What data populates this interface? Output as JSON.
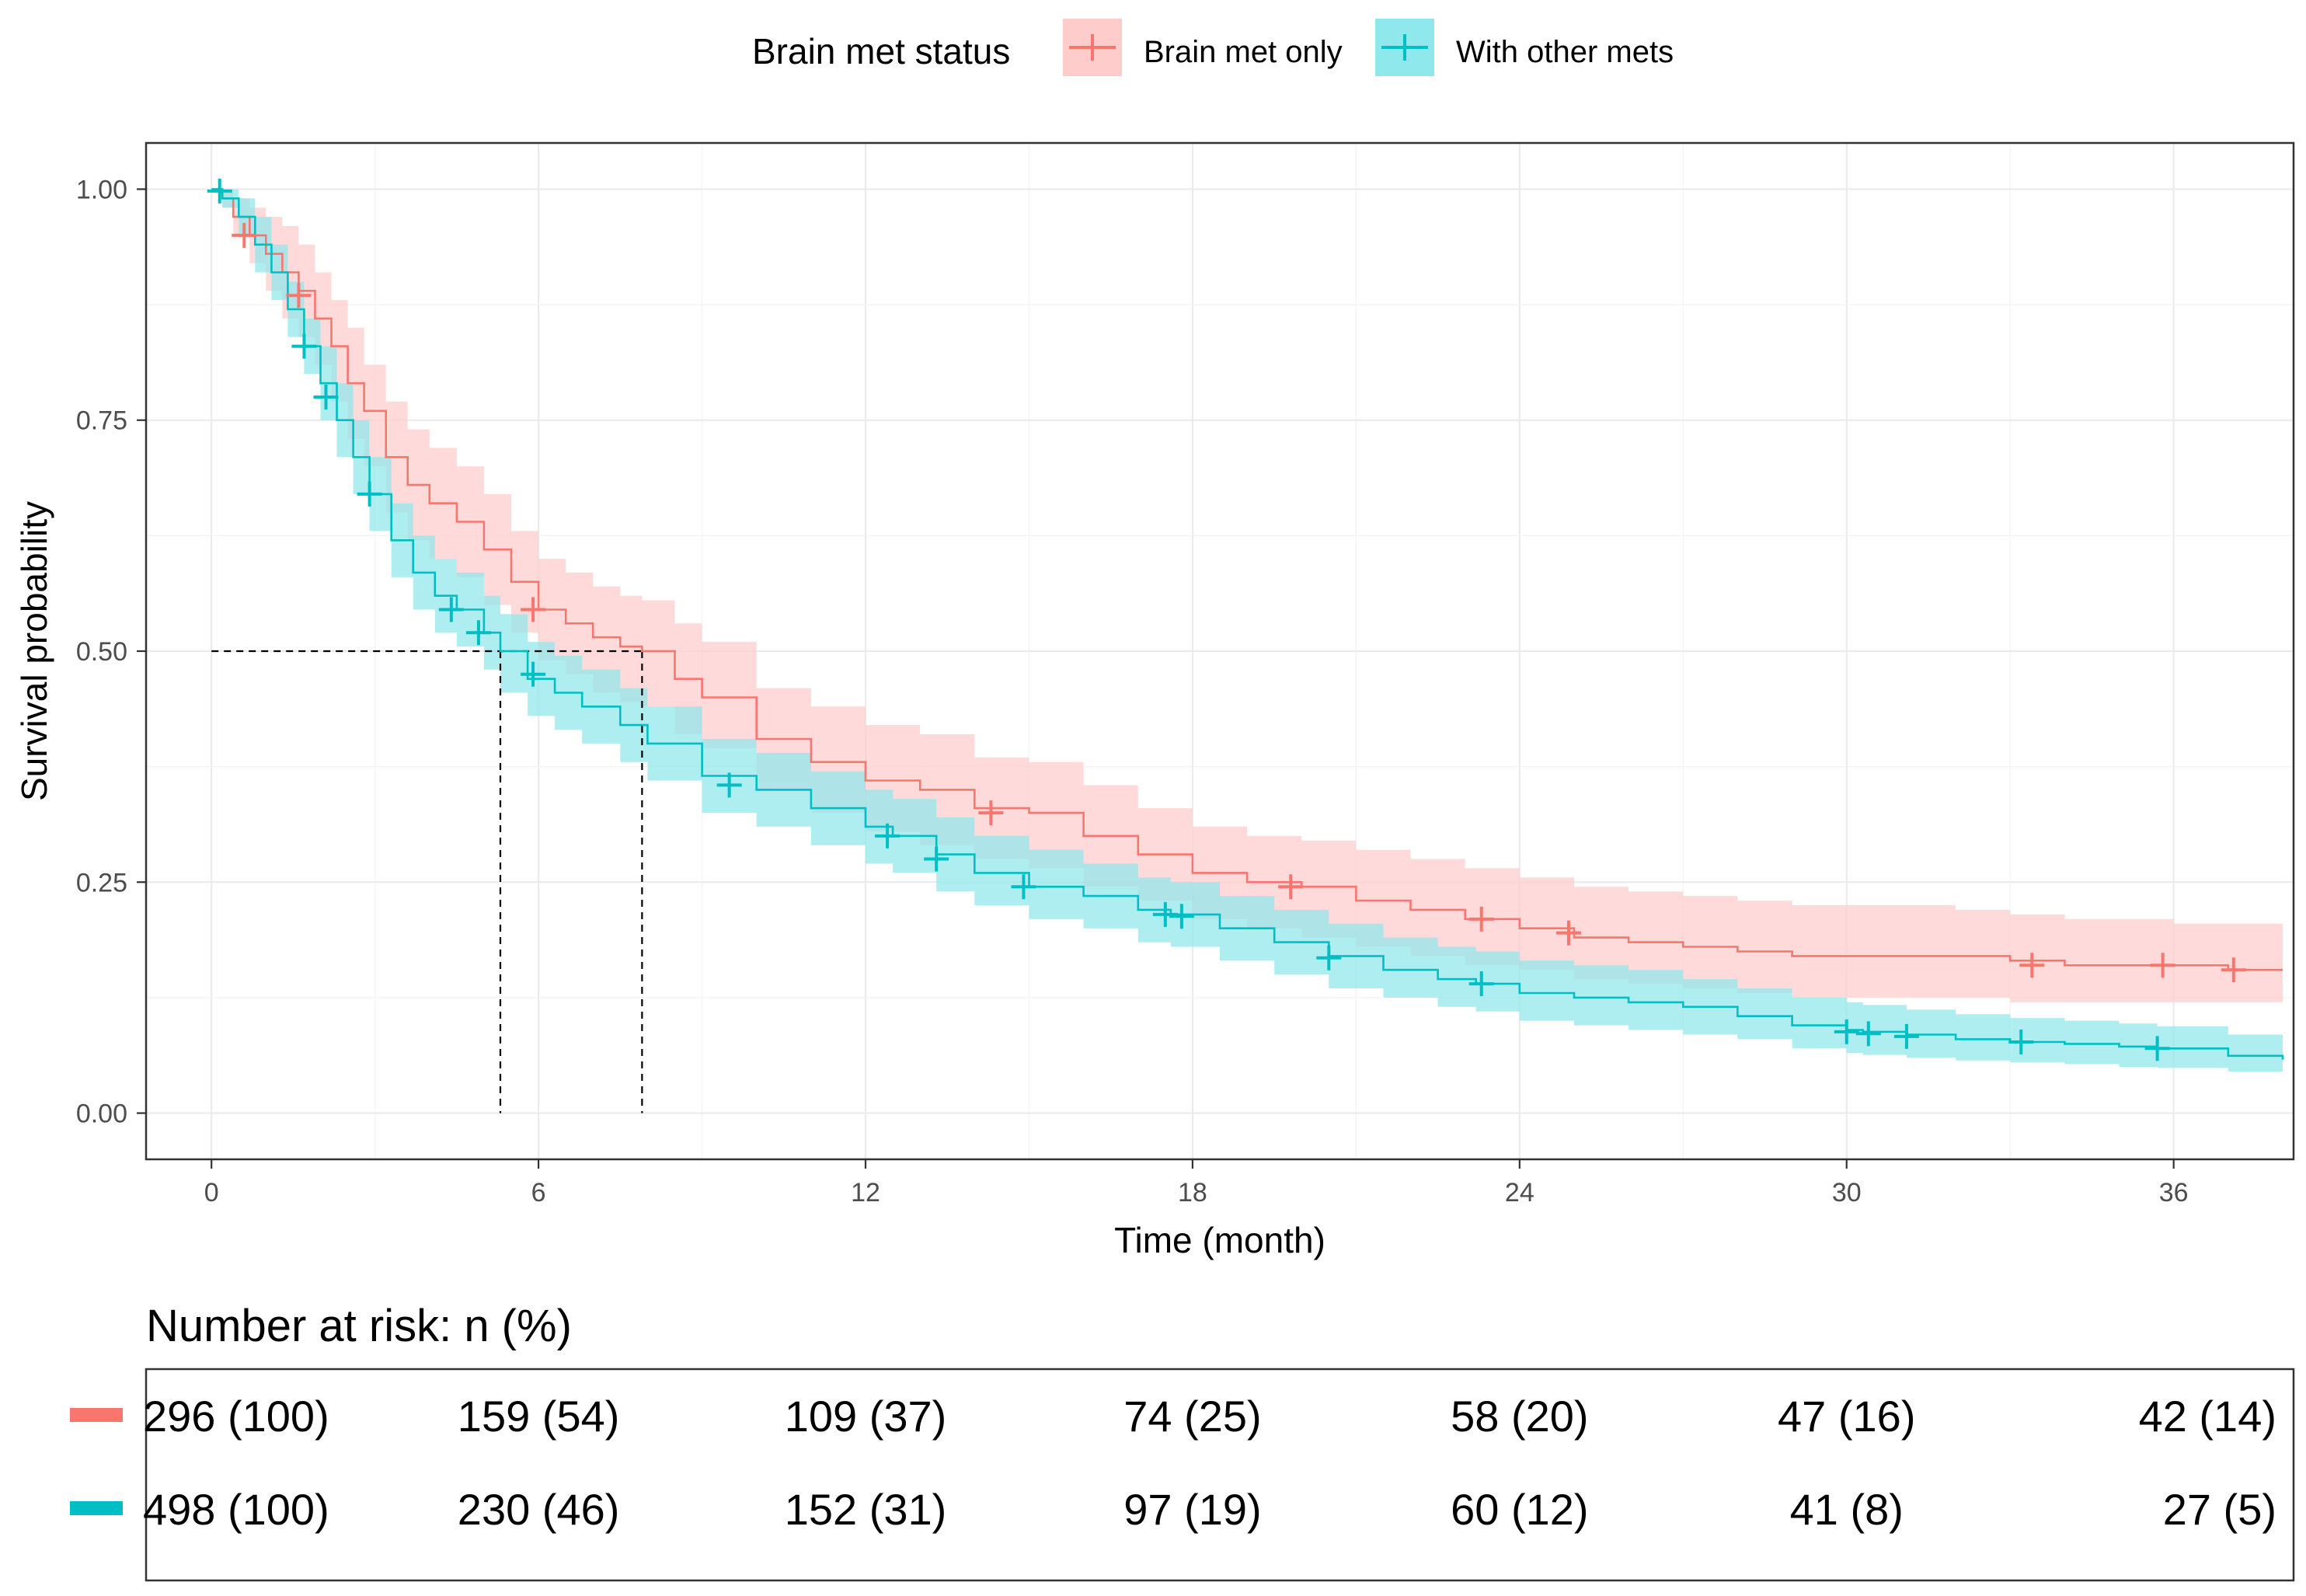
{
  "chart_data": {
    "type": "line",
    "subtype": "kaplan-meier",
    "xlabel": "Time (month)",
    "ylabel": "Survival probability",
    "xlim": [
      -1.2,
      38.2
    ],
    "ylim": [
      -0.05,
      1.05
    ],
    "x_ticks": [
      0,
      6,
      12,
      18,
      24,
      30,
      36
    ],
    "y_ticks": [
      0,
      0.25,
      0.5,
      0.75,
      1.0
    ],
    "y_tick_labels": [
      "0.00",
      "0.25",
      "0.50",
      "0.75",
      "1.00"
    ],
    "grid": true,
    "legend": {
      "title": "Brain met status",
      "placement": "top",
      "entries": [
        "Brain met only",
        "With other mets"
      ]
    },
    "median_reference": {
      "y": 0.5,
      "x": [
        5.3,
        7.9
      ]
    },
    "series": [
      {
        "name": "Brain met only",
        "color": "#F8766D",
        "band_color": "#FFCCCC",
        "x": [
          0,
          0.2,
          0.4,
          0.7,
          1.0,
          1.3,
          1.6,
          1.9,
          2.2,
          2.5,
          2.8,
          3.2,
          3.6,
          4.0,
          4.5,
          5.0,
          5.5,
          6.0,
          6.5,
          7.0,
          7.5,
          7.9,
          8.5,
          9.0,
          10.0,
          11.0,
          12.0,
          13.0,
          14.0,
          15.0,
          16.0,
          17.0,
          18.0,
          19.0,
          20.0,
          21.0,
          22.0,
          23.0,
          24.0,
          25.0,
          26.0,
          27.0,
          28.0,
          29.0,
          30.0,
          31.0,
          32.0,
          33.0,
          34.0,
          35.0,
          36.0,
          37.0,
          38.0
        ],
        "y": [
          1.0,
          0.99,
          0.97,
          0.95,
          0.93,
          0.91,
          0.89,
          0.86,
          0.83,
          0.79,
          0.76,
          0.71,
          0.68,
          0.66,
          0.64,
          0.61,
          0.575,
          0.545,
          0.53,
          0.515,
          0.505,
          0.5,
          0.47,
          0.45,
          0.405,
          0.38,
          0.36,
          0.35,
          0.33,
          0.325,
          0.3,
          0.28,
          0.26,
          0.25,
          0.245,
          0.23,
          0.22,
          0.21,
          0.2,
          0.19,
          0.185,
          0.18,
          0.175,
          0.17,
          0.17,
          0.17,
          0.17,
          0.165,
          0.16,
          0.16,
          0.16,
          0.155,
          0.155
        ],
        "lower": [
          1.0,
          0.98,
          0.95,
          0.92,
          0.89,
          0.86,
          0.84,
          0.81,
          0.77,
          0.73,
          0.7,
          0.65,
          0.62,
          0.6,
          0.58,
          0.55,
          0.52,
          0.49,
          0.475,
          0.455,
          0.445,
          0.44,
          0.41,
          0.395,
          0.35,
          0.325,
          0.305,
          0.29,
          0.275,
          0.265,
          0.245,
          0.23,
          0.21,
          0.2,
          0.19,
          0.18,
          0.17,
          0.16,
          0.155,
          0.145,
          0.14,
          0.135,
          0.13,
          0.125,
          0.125,
          0.125,
          0.125,
          0.12,
          0.12,
          0.12,
          0.12,
          0.12,
          0.12
        ],
        "upper": [
          1.0,
          1.0,
          0.99,
          0.98,
          0.97,
          0.96,
          0.94,
          0.91,
          0.88,
          0.85,
          0.81,
          0.77,
          0.74,
          0.72,
          0.7,
          0.67,
          0.63,
          0.6,
          0.585,
          0.57,
          0.56,
          0.555,
          0.53,
          0.51,
          0.46,
          0.44,
          0.42,
          0.41,
          0.385,
          0.38,
          0.355,
          0.33,
          0.31,
          0.3,
          0.295,
          0.285,
          0.275,
          0.265,
          0.255,
          0.245,
          0.24,
          0.235,
          0.23,
          0.225,
          0.225,
          0.225,
          0.22,
          0.215,
          0.21,
          0.21,
          0.205,
          0.205,
          0.205
        ],
        "censor_x": [
          0.6,
          1.6,
          5.9,
          14.3,
          19.8,
          23.3,
          24.9,
          33.4,
          35.8,
          37.1
        ],
        "censor_y": [
          0.95,
          0.885,
          0.545,
          0.325,
          0.245,
          0.21,
          0.195,
          0.16,
          0.16,
          0.155
        ]
      },
      {
        "name": "With other mets",
        "color": "#00BFC4",
        "band_color": "#8FE8EB",
        "x": [
          0,
          0.2,
          0.5,
          0.8,
          1.1,
          1.4,
          1.7,
          2.0,
          2.3,
          2.6,
          2.9,
          3.3,
          3.7,
          4.1,
          4.5,
          5.0,
          5.3,
          5.8,
          6.3,
          6.8,
          7.5,
          8.0,
          9.0,
          10.0,
          11.0,
          12.0,
          12.5,
          13.3,
          14.0,
          15.0,
          16.0,
          17.0,
          17.6,
          18.5,
          19.5,
          20.5,
          21.5,
          22.5,
          23.2,
          24.0,
          25.0,
          26.0,
          27.0,
          28.0,
          29.0,
          30.0,
          30.3,
          31.1,
          32.0,
          33.0,
          34.0,
          35.0,
          35.7,
          37.0,
          38.0
        ],
        "y": [
          1.0,
          0.99,
          0.97,
          0.94,
          0.91,
          0.87,
          0.83,
          0.79,
          0.75,
          0.71,
          0.67,
          0.62,
          0.585,
          0.56,
          0.545,
          0.52,
          0.5,
          0.47,
          0.455,
          0.44,
          0.42,
          0.4,
          0.365,
          0.35,
          0.33,
          0.31,
          0.3,
          0.28,
          0.26,
          0.245,
          0.235,
          0.22,
          0.215,
          0.2,
          0.185,
          0.17,
          0.155,
          0.145,
          0.14,
          0.13,
          0.125,
          0.12,
          0.115,
          0.105,
          0.095,
          0.09,
          0.088,
          0.085,
          0.08,
          0.077,
          0.075,
          0.072,
          0.07,
          0.062,
          0.058
        ],
        "lower": [
          1.0,
          0.98,
          0.95,
          0.91,
          0.88,
          0.84,
          0.8,
          0.75,
          0.71,
          0.67,
          0.63,
          0.58,
          0.545,
          0.52,
          0.505,
          0.48,
          0.455,
          0.43,
          0.415,
          0.4,
          0.38,
          0.36,
          0.325,
          0.31,
          0.29,
          0.27,
          0.26,
          0.24,
          0.225,
          0.21,
          0.2,
          0.185,
          0.18,
          0.165,
          0.15,
          0.135,
          0.125,
          0.115,
          0.11,
          0.1,
          0.095,
          0.09,
          0.085,
          0.08,
          0.07,
          0.065,
          0.063,
          0.06,
          0.057,
          0.055,
          0.053,
          0.05,
          0.049,
          0.045,
          0.042
        ],
        "upper": [
          1.0,
          1.0,
          0.99,
          0.97,
          0.94,
          0.9,
          0.86,
          0.83,
          0.79,
          0.75,
          0.71,
          0.66,
          0.625,
          0.6,
          0.585,
          0.56,
          0.54,
          0.51,
          0.495,
          0.48,
          0.46,
          0.44,
          0.405,
          0.39,
          0.37,
          0.35,
          0.34,
          0.32,
          0.3,
          0.285,
          0.27,
          0.255,
          0.25,
          0.235,
          0.22,
          0.205,
          0.19,
          0.18,
          0.175,
          0.165,
          0.16,
          0.155,
          0.145,
          0.135,
          0.125,
          0.12,
          0.117,
          0.112,
          0.107,
          0.103,
          0.1,
          0.097,
          0.094,
          0.085,
          0.08
        ],
        "censor_x": [
          0.15,
          1.7,
          2.1,
          2.9,
          4.4,
          4.9,
          5.9,
          9.5,
          12.4,
          13.3,
          14.9,
          17.5,
          17.8,
          20.5,
          23.3,
          30.0,
          30.4,
          31.1,
          33.2,
          35.7
        ],
        "censor_y": [
          0.998,
          0.83,
          0.775,
          0.67,
          0.545,
          0.52,
          0.475,
          0.355,
          0.3,
          0.275,
          0.245,
          0.215,
          0.213,
          0.168,
          0.14,
          0.088,
          0.086,
          0.083,
          0.077,
          0.07
        ]
      }
    ]
  },
  "risk_table": {
    "title": "Number at risk: n (%)",
    "times": [
      0,
      6,
      12,
      18,
      24,
      30,
      36
    ],
    "rows": [
      {
        "group": "Brain met only",
        "color": "#F8766D",
        "cells": [
          "296 (100)",
          "159 (54)",
          "109 (37)",
          "74 (25)",
          "58 (20)",
          "47 (16)",
          "42 (14)"
        ]
      },
      {
        "group": "With other mets",
        "color": "#00BFC4",
        "cells": [
          "498 (100)",
          "230 (46)",
          "152 (31)",
          "97 (19)",
          "60 (12)",
          "41 (8)",
          "27 (5)"
        ]
      }
    ]
  }
}
